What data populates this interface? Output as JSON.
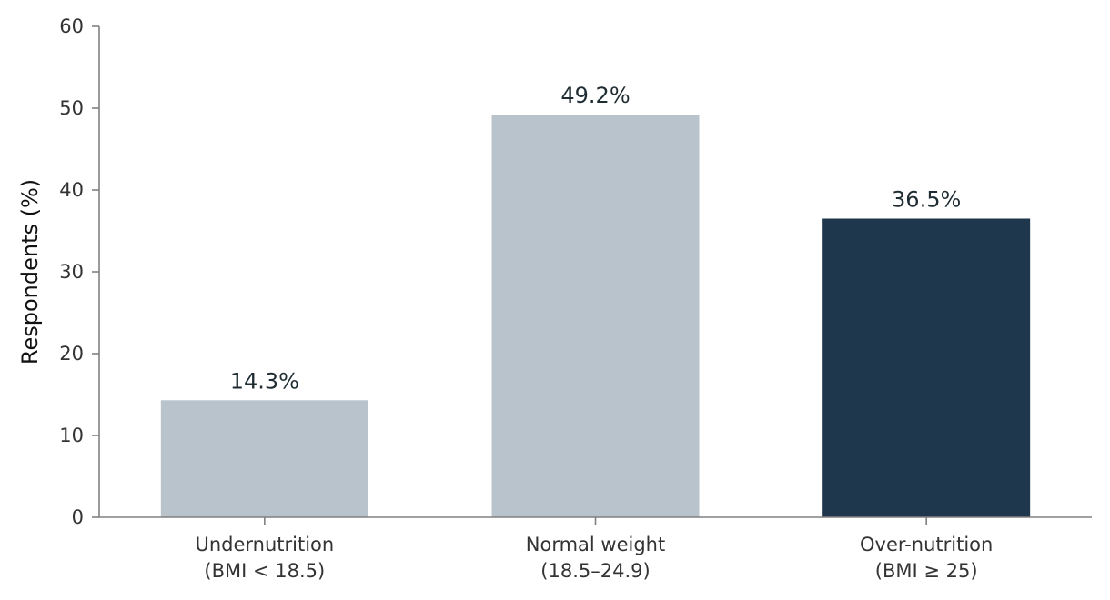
{
  "chart_data": {
    "type": "bar",
    "categories": [
      [
        "Undernutrition",
        "(BMI < 18.5)"
      ],
      [
        "Normal weight",
        "(18.5–24.9)"
      ],
      [
        "Over-nutrition",
        "(BMI ≥ 25)"
      ]
    ],
    "values": [
      14.3,
      49.2,
      36.5
    ],
    "data_labels": [
      "14.3%",
      "49.2%",
      "36.5%"
    ],
    "bar_colors": [
      "#b9c3cb",
      "#b9c3cb",
      "#1e374c"
    ],
    "title": "",
    "xlabel": "",
    "ylabel": "Respondents (%)",
    "ylim": [
      0,
      60
    ],
    "yticks": [
      0,
      10,
      20,
      30,
      40,
      50,
      60
    ],
    "grid": false,
    "axis_color": "#808080"
  }
}
